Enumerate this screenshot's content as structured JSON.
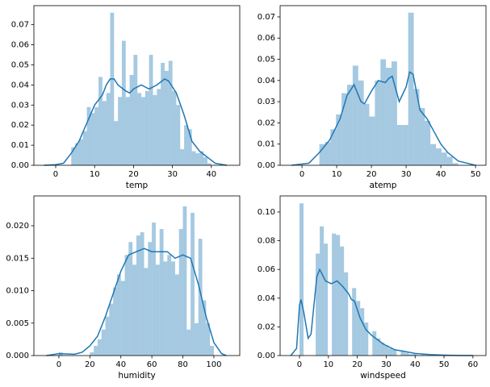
{
  "chart_data": [
    {
      "type": "histogram",
      "xlabel": "temp",
      "color": "#1f77b4",
      "alpha": 0.4,
      "bins": [
        4,
        5,
        6,
        7,
        8,
        9,
        10,
        11,
        12,
        13,
        14,
        15,
        16,
        17,
        18,
        19,
        20,
        21,
        22,
        23,
        24,
        25,
        26,
        27,
        28,
        29,
        30,
        31,
        32,
        33,
        34,
        35,
        36,
        37,
        38,
        39,
        40
      ],
      "values": [
        0.009,
        0.011,
        0.013,
        0.017,
        0.029,
        0.026,
        0.029,
        0.044,
        0.032,
        0.036,
        0.076,
        0.022,
        0.034,
        0.062,
        0.034,
        0.045,
        0.055,
        0.036,
        0.034,
        0.037,
        0.055,
        0.035,
        0.038,
        0.051,
        0.047,
        0.052,
        0.037,
        0.03,
        0.008,
        0.02,
        0.018,
        0.007,
        0.006,
        0.007,
        0.004,
        0.001
      ],
      "kde_x": [
        -3,
        0,
        2,
        4,
        6,
        8,
        10,
        12,
        13,
        14,
        15,
        16,
        18,
        19,
        20,
        22,
        24,
        26,
        28,
        29,
        31,
        33,
        35,
        37,
        39,
        41,
        44
      ],
      "kde_y": [
        0,
        0.0003,
        0.001,
        0.006,
        0.012,
        0.021,
        0.03,
        0.035,
        0.04,
        0.043,
        0.043,
        0.04,
        0.037,
        0.036,
        0.038,
        0.04,
        0.038,
        0.04,
        0.043,
        0.042,
        0.036,
        0.025,
        0.012,
        0.007,
        0.004,
        0.001,
        0
      ],
      "xlim": [
        -5.6,
        47.3
      ],
      "ylim": [
        0,
        0.0795
      ],
      "xticks": [
        0,
        10,
        20,
        30,
        40
      ],
      "yticks": [
        {
          "value": 0,
          "label": "0.00"
        },
        {
          "value": 0.01,
          "label": "0.01"
        },
        {
          "value": 0.02,
          "label": "0.02"
        },
        {
          "value": 0.03,
          "label": "0.03"
        },
        {
          "value": 0.04,
          "label": "0.04"
        },
        {
          "value": 0.05,
          "label": "0.05"
        },
        {
          "value": 0.06,
          "label": "0.06"
        },
        {
          "value": 0.07,
          "label": "0.07"
        }
      ]
    },
    {
      "type": "histogram",
      "xlabel": "atemp",
      "color": "#1f77b4",
      "alpha": 0.4,
      "bins": [
        5,
        6.6,
        8.2,
        9.8,
        11.4,
        13,
        14.6,
        16.2,
        17.8,
        19.4,
        21,
        22.6,
        24.2,
        25.8,
        27.4,
        29,
        30.6,
        32.2,
        33.8,
        35.4,
        37,
        38.6,
        40.2,
        41.8,
        43.4,
        45
      ],
      "values": [
        0.01,
        0.011,
        0.017,
        0.024,
        0.034,
        0.038,
        0.047,
        0.04,
        0.029,
        0.023,
        0.04,
        0.05,
        0.046,
        0.049,
        0.019,
        0.019,
        0.072,
        0.036,
        0.027,
        0.021,
        0.01,
        0.008,
        0.006,
        0.004,
        0.001
      ],
      "kde_x": [
        -3,
        2,
        5,
        8,
        11,
        13,
        15,
        17,
        18,
        20,
        22,
        24,
        25,
        26,
        28,
        30,
        31,
        32,
        34,
        36,
        38,
        40,
        42,
        45,
        50
      ],
      "kde_y": [
        0,
        0.001,
        0.006,
        0.012,
        0.022,
        0.033,
        0.038,
        0.03,
        0.029,
        0.035,
        0.04,
        0.039,
        0.041,
        0.042,
        0.03,
        0.037,
        0.044,
        0.043,
        0.026,
        0.022,
        0.016,
        0.01,
        0.006,
        0.002,
        0
      ],
      "xlim": [
        -6.3,
        53.0
      ],
      "ylim": [
        0,
        0.0753
      ],
      "xticks": [
        0,
        10,
        20,
        30,
        40,
        50
      ],
      "yticks": [
        {
          "value": 0,
          "label": "0.00"
        },
        {
          "value": 0.01,
          "label": "0.01"
        },
        {
          "value": 0.02,
          "label": "0.02"
        },
        {
          "value": 0.03,
          "label": "0.03"
        },
        {
          "value": 0.04,
          "label": "0.04"
        },
        {
          "value": 0.05,
          "label": "0.05"
        },
        {
          "value": 0.06,
          "label": "0.06"
        },
        {
          "value": 0.07,
          "label": "0.07"
        }
      ]
    },
    {
      "type": "histogram",
      "xlabel": "humidity",
      "color": "#1f77b4",
      "alpha": 0.4,
      "bins": [
        0,
        2.5,
        5,
        7.5,
        10,
        12.5,
        15,
        17.5,
        20,
        22.5,
        25,
        27.5,
        30,
        32.5,
        35,
        37.5,
        40,
        42.5,
        45,
        47.5,
        50,
        52.5,
        55,
        57.5,
        60,
        62.5,
        65,
        67.5,
        70,
        72.5,
        75,
        77.5,
        80,
        82.5,
        85,
        87.5,
        90,
        92.5,
        95,
        97.5,
        100
      ],
      "values": [
        0.0005,
        0,
        0,
        0,
        0,
        0,
        0,
        0,
        0.0005,
        0.0015,
        0.0025,
        0.004,
        0.006,
        0.008,
        0.0105,
        0.0125,
        0.0115,
        0.0155,
        0.0175,
        0.014,
        0.0185,
        0.019,
        0.0135,
        0.0175,
        0.0205,
        0.014,
        0.0195,
        0.0145,
        0.0155,
        0.0145,
        0.0125,
        0.0195,
        0.023,
        0.004,
        0.022,
        0.005,
        0.018,
        0.0085,
        0.005,
        0.0015
      ],
      "kde_x": [
        -8,
        0,
        10,
        15,
        20,
        25,
        30,
        35,
        40,
        45,
        50,
        55,
        60,
        65,
        70,
        75,
        80,
        85,
        90,
        95,
        100,
        105,
        108
      ],
      "kde_y": [
        0,
        0.0003,
        0.0002,
        0.0005,
        0.0015,
        0.003,
        0.006,
        0.0095,
        0.013,
        0.0155,
        0.016,
        0.0165,
        0.016,
        0.016,
        0.016,
        0.015,
        0.0155,
        0.015,
        0.011,
        0.006,
        0.002,
        0.0003,
        0
      ],
      "xlim": [
        -16.1,
        116.7
      ],
      "ylim": [
        0,
        0.0246
      ],
      "xticks": [
        0,
        20,
        40,
        60,
        80,
        100
      ],
      "yticks": [
        {
          "value": 0,
          "label": "0.000"
        },
        {
          "value": 0.005,
          "label": "0.005"
        },
        {
          "value": 0.01,
          "label": "0.010"
        },
        {
          "value": 0.015,
          "label": "0.015"
        },
        {
          "value": 0.02,
          "label": "0.020"
        }
      ]
    },
    {
      "type": "histogram",
      "xlabel": "windspeed",
      "color": "#1f77b4",
      "alpha": 0.4,
      "bins": [
        0,
        1.4,
        2.8,
        4.2,
        5.6,
        7,
        8.4,
        9.8,
        11.2,
        12.6,
        14,
        15.4,
        16.8,
        18.2,
        19.6,
        21,
        22.4,
        23.8,
        25.2,
        26.6,
        28,
        29.4,
        30.8,
        32.2,
        33.6,
        35,
        36.4,
        37.8,
        39.2,
        40.6,
        42,
        43.4,
        44.8,
        46.2,
        47.6,
        49,
        50.4,
        51.8,
        53.2,
        54.6,
        56,
        57.4
      ],
      "values": [
        0.106,
        0,
        0,
        0,
        0.071,
        0.09,
        0.078,
        0,
        0.085,
        0.084,
        0.076,
        0.058,
        0,
        0.047,
        0.038,
        0.033,
        0.023,
        0,
        0.017,
        0.012,
        0.009,
        0.007,
        0.005,
        0.004,
        0,
        0.003,
        0.002,
        0.001,
        0.001,
        0,
        0.0005,
        0,
        0,
        0.0003,
        0,
        0,
        0,
        0,
        0,
        0,
        0.0002
      ],
      "kde_x": [
        -3,
        -1,
        0,
        0.5,
        1.5,
        3,
        4,
        5,
        6,
        7,
        9,
        11,
        13,
        15,
        17,
        18,
        19,
        21,
        23,
        25,
        27,
        29,
        31,
        33,
        36,
        40,
        45,
        50,
        55,
        60
      ],
      "kde_y": [
        0,
        0.005,
        0.035,
        0.039,
        0.03,
        0.012,
        0.015,
        0.035,
        0.055,
        0.06,
        0.052,
        0.05,
        0.052,
        0.048,
        0.043,
        0.039,
        0.038,
        0.026,
        0.018,
        0.014,
        0.011,
        0.008,
        0.006,
        0.004,
        0.003,
        0.0015,
        0.0007,
        0.0003,
        0.0001,
        0
      ],
      "xlim": [
        -6.7,
        64.5
      ],
      "ylim": [
        0,
        0.1112
      ],
      "xticks": [
        0,
        10,
        20,
        30,
        40,
        50,
        60
      ],
      "yticks": [
        {
          "value": 0,
          "label": "0.00"
        },
        {
          "value": 0.02,
          "label": "0.02"
        },
        {
          "value": 0.04,
          "label": "0.04"
        },
        {
          "value": 0.06,
          "label": "0.06"
        },
        {
          "value": 0.08,
          "label": "0.08"
        },
        {
          "value": 0.1,
          "label": "0.10"
        }
      ]
    }
  ]
}
